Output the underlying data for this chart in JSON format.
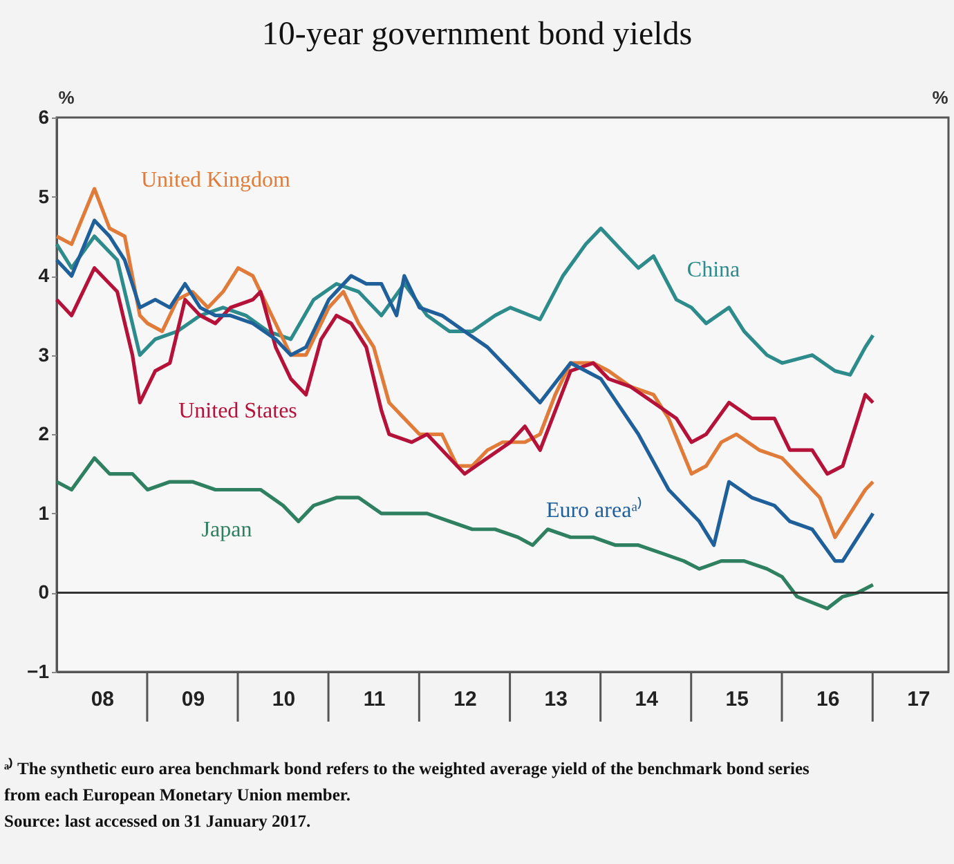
{
  "chart_data": {
    "type": "line",
    "title": "10-year government bond yields",
    "ylabel": "%",
    "y2label": "%",
    "ylim": [
      -1,
      6
    ],
    "yticks": [
      -1,
      0,
      1,
      2,
      3,
      4,
      5,
      6
    ],
    "xlim": [
      "2008-01",
      "2017-11"
    ],
    "xticks": [
      {
        "value": "2008-07",
        "label": "08"
      },
      {
        "value": "2009-07",
        "label": "09"
      },
      {
        "value": "2010-07",
        "label": "10"
      },
      {
        "value": "2011-07",
        "label": "11"
      },
      {
        "value": "2012-07",
        "label": "12"
      },
      {
        "value": "2013-07",
        "label": "13"
      },
      {
        "value": "2014-07",
        "label": "14"
      },
      {
        "value": "2015-07",
        "label": "15"
      },
      {
        "value": "2016-07",
        "label": "16"
      },
      {
        "value": "2017-07",
        "label": "17"
      }
    ],
    "grid": false,
    "legend": false,
    "marker": "none",
    "line_style": "solid",
    "ref_lines": [
      {
        "axis": "y",
        "value": 0,
        "color": "#333333"
      }
    ],
    "annotations": [
      "ᵃ⁾ The synthetic euro area benchmark bond refers to the weighted average yield of the benchmark bond series",
      "from each European Monetary Union member.",
      "Source: last accessed on 31 January 2017."
    ],
    "series": [
      {
        "name": "China",
        "color": "#2e8b8b",
        "x": [
          "2008-01",
          "2008-03",
          "2008-06",
          "2008-09",
          "2008-12",
          "2009-02",
          "2009-05",
          "2009-08",
          "2009-11",
          "2010-02",
          "2010-05",
          "2010-08",
          "2010-11",
          "2011-02",
          "2011-05",
          "2011-08",
          "2011-11",
          "2012-02",
          "2012-05",
          "2012-08",
          "2012-11",
          "2013-01",
          "2013-05",
          "2013-08",
          "2013-11",
          "2014-01",
          "2014-04",
          "2014-06",
          "2014-08",
          "2014-11",
          "2015-01",
          "2015-03",
          "2015-06",
          "2015-08",
          "2015-11",
          "2016-01",
          "2016-05",
          "2016-08",
          "2016-10",
          "2016-12",
          "2017-01"
        ],
        "values": [
          4.4,
          4.1,
          4.5,
          4.2,
          3.0,
          3.2,
          3.3,
          3.5,
          3.6,
          3.5,
          3.3,
          3.2,
          3.7,
          3.9,
          3.8,
          3.5,
          3.9,
          3.5,
          3.3,
          3.3,
          3.5,
          3.6,
          3.45,
          4.0,
          4.4,
          4.6,
          4.3,
          4.1,
          4.25,
          3.7,
          3.6,
          3.4,
          3.6,
          3.3,
          3.0,
          2.9,
          3.0,
          2.8,
          2.75,
          3.1,
          3.25
        ]
      },
      {
        "name": "United Kingdom",
        "color": "#e07b39",
        "x": [
          "2008-01",
          "2008-03",
          "2008-06",
          "2008-08",
          "2008-10",
          "2008-12",
          "2009-01",
          "2009-03",
          "2009-05",
          "2009-07",
          "2009-09",
          "2009-11",
          "2010-01",
          "2010-03",
          "2010-05",
          "2010-08",
          "2010-10",
          "2011-01",
          "2011-03",
          "2011-05",
          "2011-07",
          "2011-09",
          "2011-11",
          "2012-01",
          "2012-04",
          "2012-06",
          "2012-08",
          "2012-10",
          "2012-12",
          "2013-03",
          "2013-05",
          "2013-07",
          "2013-09",
          "2013-12",
          "2014-02",
          "2014-05",
          "2014-08",
          "2014-10",
          "2015-01",
          "2015-03",
          "2015-05",
          "2015-07",
          "2015-10",
          "2016-01",
          "2016-03",
          "2016-06",
          "2016-08",
          "2016-10",
          "2016-12",
          "2017-01"
        ],
        "values": [
          4.5,
          4.4,
          5.1,
          4.6,
          4.5,
          3.5,
          3.4,
          3.3,
          3.7,
          3.8,
          3.6,
          3.8,
          4.1,
          4.0,
          3.6,
          3.0,
          3.0,
          3.6,
          3.8,
          3.4,
          3.1,
          2.4,
          2.2,
          2.0,
          2.0,
          1.6,
          1.6,
          1.8,
          1.9,
          1.9,
          2.0,
          2.5,
          2.9,
          2.9,
          2.8,
          2.6,
          2.5,
          2.2,
          1.5,
          1.6,
          1.9,
          2.0,
          1.8,
          1.7,
          1.5,
          1.2,
          0.7,
          1.0,
          1.3,
          1.4
        ]
      },
      {
        "name": "United States",
        "color": "#b5123a",
        "x": [
          "2008-01",
          "2008-03",
          "2008-06",
          "2008-09",
          "2008-11",
          "2008-12",
          "2009-02",
          "2009-04",
          "2009-06",
          "2009-08",
          "2009-10",
          "2009-12",
          "2010-03",
          "2010-04",
          "2010-06",
          "2010-08",
          "2010-10",
          "2010-12",
          "2011-02",
          "2011-04",
          "2011-06",
          "2011-08",
          "2011-09",
          "2011-12",
          "2012-02",
          "2012-07",
          "2012-10",
          "2013-01",
          "2013-03",
          "2013-05",
          "2013-09",
          "2013-12",
          "2014-02",
          "2014-05",
          "2014-08",
          "2014-11",
          "2015-01",
          "2015-03",
          "2015-06",
          "2015-09",
          "2015-12",
          "2016-02",
          "2016-05",
          "2016-07",
          "2016-09",
          "2016-11",
          "2016-12",
          "2017-01"
        ],
        "values": [
          3.7,
          3.5,
          4.1,
          3.8,
          3.0,
          2.4,
          2.8,
          2.9,
          3.7,
          3.5,
          3.4,
          3.6,
          3.7,
          3.8,
          3.1,
          2.7,
          2.5,
          3.2,
          3.5,
          3.4,
          3.1,
          2.3,
          2.0,
          1.9,
          2.0,
          1.5,
          1.7,
          1.9,
          2.1,
          1.8,
          2.8,
          2.9,
          2.7,
          2.6,
          2.4,
          2.2,
          1.9,
          2.0,
          2.4,
          2.2,
          2.2,
          1.8,
          1.8,
          1.5,
          1.6,
          2.2,
          2.5,
          2.4
        ]
      },
      {
        "name": "Euro areaᵃ⁾",
        "color": "#1f5f9a",
        "x": [
          "2008-01",
          "2008-03",
          "2008-06",
          "2008-08",
          "2008-10",
          "2008-12",
          "2009-02",
          "2009-04",
          "2009-06",
          "2009-08",
          "2009-10",
          "2009-12",
          "2010-03",
          "2010-06",
          "2010-08",
          "2010-10",
          "2011-01",
          "2011-04",
          "2011-06",
          "2011-08",
          "2011-10",
          "2011-11",
          "2012-01",
          "2012-04",
          "2012-07",
          "2012-10",
          "2013-01",
          "2013-05",
          "2013-09",
          "2014-01",
          "2014-06",
          "2014-10",
          "2015-02",
          "2015-04",
          "2015-06",
          "2015-09",
          "2015-12",
          "2016-02",
          "2016-05",
          "2016-08",
          "2016-09",
          "2016-11",
          "2017-01"
        ],
        "values": [
          4.2,
          4.0,
          4.7,
          4.5,
          4.2,
          3.6,
          3.7,
          3.6,
          3.9,
          3.6,
          3.5,
          3.5,
          3.4,
          3.2,
          3.0,
          3.1,
          3.7,
          4.0,
          3.9,
          3.9,
          3.5,
          4.0,
          3.6,
          3.5,
          3.3,
          3.1,
          2.8,
          2.4,
          2.9,
          2.7,
          2.0,
          1.3,
          0.9,
          0.6,
          1.4,
          1.2,
          1.1,
          0.9,
          0.8,
          0.4,
          0.4,
          0.7,
          1.0
        ]
      },
      {
        "name": "Japan",
        "color": "#2e8060",
        "x": [
          "2008-01",
          "2008-03",
          "2008-06",
          "2008-08",
          "2008-11",
          "2009-01",
          "2009-04",
          "2009-07",
          "2009-10",
          "2010-01",
          "2010-04",
          "2010-07",
          "2010-09",
          "2010-11",
          "2011-02",
          "2011-05",
          "2011-08",
          "2011-11",
          "2012-02",
          "2012-05",
          "2012-08",
          "2012-11",
          "2013-02",
          "2013-04",
          "2013-06",
          "2013-09",
          "2013-12",
          "2014-03",
          "2014-06",
          "2014-09",
          "2014-12",
          "2015-02",
          "2015-05",
          "2015-08",
          "2015-11",
          "2016-01",
          "2016-03",
          "2016-07",
          "2016-09",
          "2016-11",
          "2017-01"
        ],
        "values": [
          1.4,
          1.3,
          1.7,
          1.5,
          1.5,
          1.3,
          1.4,
          1.4,
          1.3,
          1.3,
          1.3,
          1.1,
          0.9,
          1.1,
          1.2,
          1.2,
          1.0,
          1.0,
          1.0,
          0.9,
          0.8,
          0.8,
          0.7,
          0.6,
          0.8,
          0.7,
          0.7,
          0.6,
          0.6,
          0.5,
          0.4,
          0.3,
          0.4,
          0.4,
          0.3,
          0.2,
          -0.05,
          -0.2,
          -0.05,
          0.0,
          0.1
        ]
      }
    ]
  }
}
